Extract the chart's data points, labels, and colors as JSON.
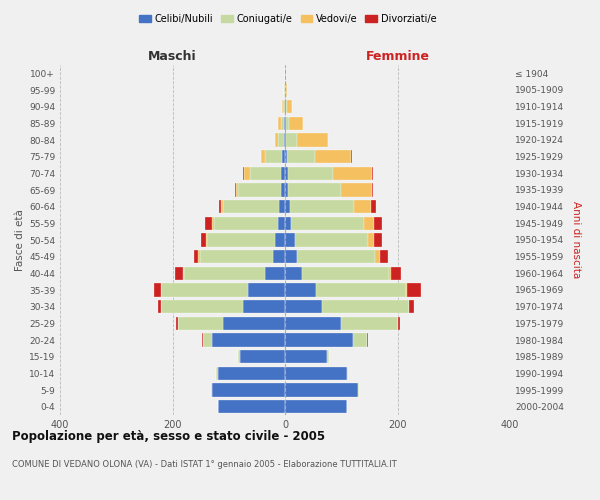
{
  "age_groups": [
    "0-4",
    "5-9",
    "10-14",
    "15-19",
    "20-24",
    "25-29",
    "30-34",
    "35-39",
    "40-44",
    "45-49",
    "50-54",
    "55-59",
    "60-64",
    "65-69",
    "70-74",
    "75-79",
    "80-84",
    "85-89",
    "90-94",
    "95-99",
    "100+"
  ],
  "birth_years": [
    "2000-2004",
    "1995-1999",
    "1990-1994",
    "1985-1989",
    "1980-1984",
    "1975-1979",
    "1970-1974",
    "1965-1969",
    "1960-1964",
    "1955-1959",
    "1950-1954",
    "1945-1949",
    "1940-1944",
    "1935-1939",
    "1930-1934",
    "1925-1929",
    "1920-1924",
    "1915-1919",
    "1910-1914",
    "1905-1909",
    "≤ 1904"
  ],
  "maschi": {
    "celibi": [
      120,
      130,
      120,
      80,
      130,
      110,
      75,
      65,
      35,
      22,
      18,
      12,
      10,
      8,
      8,
      5,
      2,
      2,
      0,
      0,
      0
    ],
    "coniugati": [
      0,
      1,
      2,
      3,
      15,
      80,
      145,
      155,
      145,
      130,
      120,
      115,
      100,
      75,
      55,
      30,
      10,
      5,
      3,
      1,
      0
    ],
    "vedovi": [
      0,
      0,
      0,
      0,
      1,
      1,
      1,
      1,
      1,
      2,
      2,
      3,
      3,
      5,
      10,
      8,
      5,
      5,
      2,
      1,
      0
    ],
    "divorziati": [
      0,
      0,
      0,
      0,
      1,
      2,
      5,
      12,
      15,
      8,
      10,
      12,
      5,
      1,
      1,
      0,
      0,
      0,
      0,
      0,
      0
    ]
  },
  "femmine": {
    "nubili": [
      110,
      130,
      110,
      75,
      120,
      100,
      65,
      55,
      30,
      22,
      18,
      10,
      8,
      5,
      5,
      3,
      2,
      2,
      1,
      0,
      0
    ],
    "coniugate": [
      0,
      1,
      2,
      3,
      25,
      100,
      155,
      160,
      155,
      138,
      130,
      130,
      115,
      95,
      80,
      50,
      20,
      5,
      2,
      1,
      0
    ],
    "vedove": [
      0,
      0,
      0,
      0,
      1,
      1,
      1,
      2,
      4,
      8,
      10,
      18,
      30,
      55,
      70,
      65,
      55,
      25,
      10,
      3,
      1
    ],
    "divorziate": [
      0,
      0,
      0,
      0,
      1,
      3,
      8,
      25,
      18,
      15,
      15,
      15,
      8,
      1,
      1,
      1,
      0,
      0,
      0,
      0,
      0
    ]
  },
  "colors": {
    "celibi": "#4472c4",
    "coniugati": "#c5d9a0",
    "vedovi": "#f5c060",
    "divorziati": "#cc2222"
  },
  "xlim": 400,
  "title": "Popolazione per età, sesso e stato civile - 2005",
  "subtitle": "COMUNE DI VEDANO OLONA (VA) - Dati ISTAT 1° gennaio 2005 - Elaborazione TUTTITALIA.IT",
  "ylabel_left": "Fasce di età",
  "ylabel_right": "Anni di nascita",
  "xlabel_left": "Maschi",
  "xlabel_right": "Femmine",
  "bg_color": "#f0f0f0",
  "legend_labels": [
    "Celibi/Nubili",
    "Coniugati/e",
    "Vedovi/e",
    "Divorziati/e"
  ]
}
